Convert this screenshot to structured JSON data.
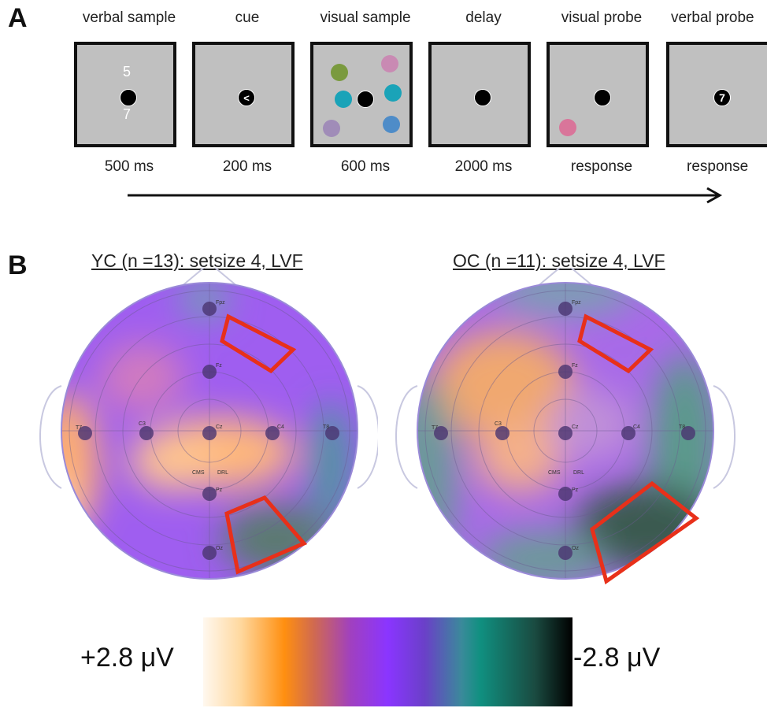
{
  "panel_a": {
    "letter": "A",
    "steps": [
      {
        "title": "verbal sample",
        "duration": "500 ms",
        "digit_top": "5",
        "digit_bottom": "7"
      },
      {
        "title": "cue",
        "duration": "200 ms",
        "symbol": "<"
      },
      {
        "title": "visual sample",
        "duration": "600 ms"
      },
      {
        "title": "delay",
        "duration": "2000 ms"
      },
      {
        "title": "visual probe",
        "duration": "response"
      },
      {
        "title": "verbal probe",
        "duration": "response",
        "symbol": "7"
      }
    ],
    "colors": {
      "screen_gray": "#c0c0c0",
      "dot_green": "#7a9a3e",
      "dot_pink": "#c98ab3",
      "dot_teal": "#1aa3b8",
      "dot_purple": "#a08cb8",
      "dot_blue": "#4e8cc8",
      "probe_pink": "#d9759a"
    }
  },
  "panel_b": {
    "letter": "B",
    "maps": [
      {
        "title": "YC (n =13): setsize 4, LVF",
        "electrodes": [
          "Fpz",
          "Fz",
          "T7",
          "C3",
          "Cz",
          "C4",
          "T8",
          "CMS",
          "DRL",
          "Pz",
          "Oz"
        ]
      },
      {
        "title": "OC (n =11): setsize 4, LVF",
        "electrodes": [
          "Fpz",
          "Fz",
          "T7",
          "C3",
          "Cz",
          "C4",
          "T8",
          "CMS",
          "DRL",
          "Pz",
          "Oz"
        ]
      }
    ],
    "colorbar": {
      "min_label": "+2.8 μV",
      "max_label": "-2.8 μV"
    },
    "roi_color": "#e8301a"
  }
}
